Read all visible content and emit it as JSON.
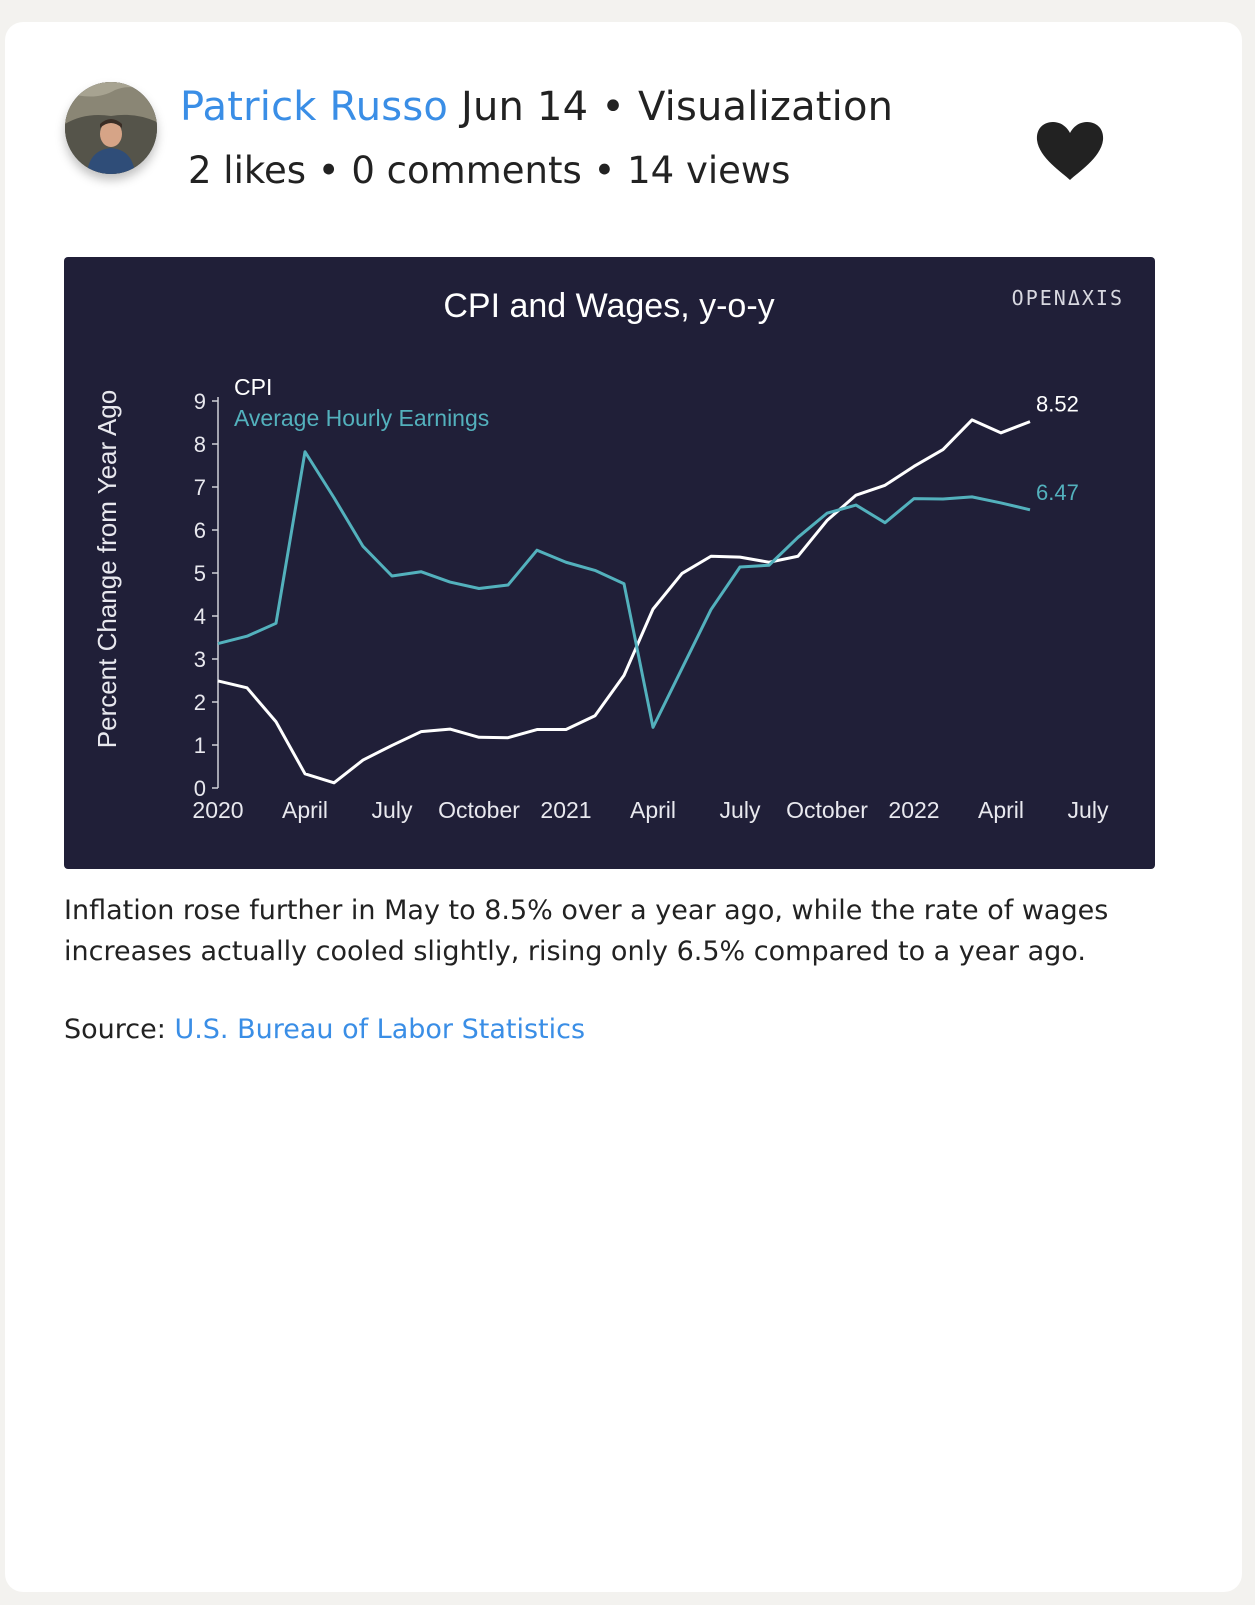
{
  "post": {
    "author": "Patrick Russo",
    "date": "Jun 14",
    "separator": "•",
    "category": "Visualization",
    "likes": "2 likes",
    "comments": "0 comments",
    "views": "14 views",
    "caption": "Inflation rose further in May to 8.5% over a year ago, while the rate of wages increases actually cooled slightly, rising only 6.5% compared to a year ago.",
    "source_label": "Source:",
    "source_link": "U.S. Bureau of Labor Statistics"
  },
  "colors": {
    "accent": "#3a8ee6",
    "chart_bg": "#201f38",
    "cpi_line": "#ffffff",
    "earnings_line": "#53b1bd",
    "heart": "#222222"
  },
  "icons": {
    "like": "heart-icon",
    "avatar": "user-photo"
  },
  "chart_data": {
    "type": "line",
    "title": "CPI and Wages, y-o-y",
    "brand": "OPENΔXIS",
    "ylabel": "Percent Change from Year Ago",
    "xlabel": "",
    "ylim": [
      0,
      9
    ],
    "yticks": [
      0,
      1,
      2,
      3,
      4,
      5,
      6,
      7,
      8,
      9
    ],
    "xlim": [
      "2020-01",
      "2022-07"
    ],
    "xtick_labels": [
      "2020",
      "April",
      "July",
      "October",
      "2021",
      "April",
      "July",
      "October",
      "2022",
      "April",
      "July"
    ],
    "x": [
      "2020-01",
      "2020-02",
      "2020-03",
      "2020-04",
      "2020-05",
      "2020-06",
      "2020-07",
      "2020-08",
      "2020-09",
      "2020-10",
      "2020-11",
      "2020-12",
      "2021-01",
      "2021-02",
      "2021-03",
      "2021-04",
      "2021-05",
      "2021-06",
      "2021-07",
      "2021-08",
      "2021-09",
      "2021-10",
      "2021-11",
      "2021-12",
      "2022-01",
      "2022-02",
      "2022-03",
      "2022-04",
      "2022-05"
    ],
    "series": [
      {
        "name": "CPI",
        "end_label": "8.52",
        "values": [
          2.49,
          2.33,
          1.54,
          0.33,
          0.12,
          0.65,
          0.99,
          1.31,
          1.37,
          1.18,
          1.17,
          1.36,
          1.36,
          1.68,
          2.62,
          4.16,
          4.99,
          5.39,
          5.37,
          5.25,
          5.39,
          6.22,
          6.81,
          7.04,
          7.48,
          7.87,
          8.56,
          8.26,
          8.52
        ]
      },
      {
        "name": "Average Hourly Earnings",
        "end_label": "6.47",
        "values": [
          3.36,
          3.53,
          3.83,
          7.82,
          6.75,
          5.62,
          4.93,
          5.03,
          4.79,
          4.64,
          4.72,
          5.53,
          5.25,
          5.06,
          4.75,
          1.41,
          2.78,
          4.15,
          5.14,
          5.18,
          5.83,
          6.39,
          6.58,
          6.17,
          6.73,
          6.72,
          6.77,
          6.63,
          6.47
        ]
      }
    ]
  }
}
